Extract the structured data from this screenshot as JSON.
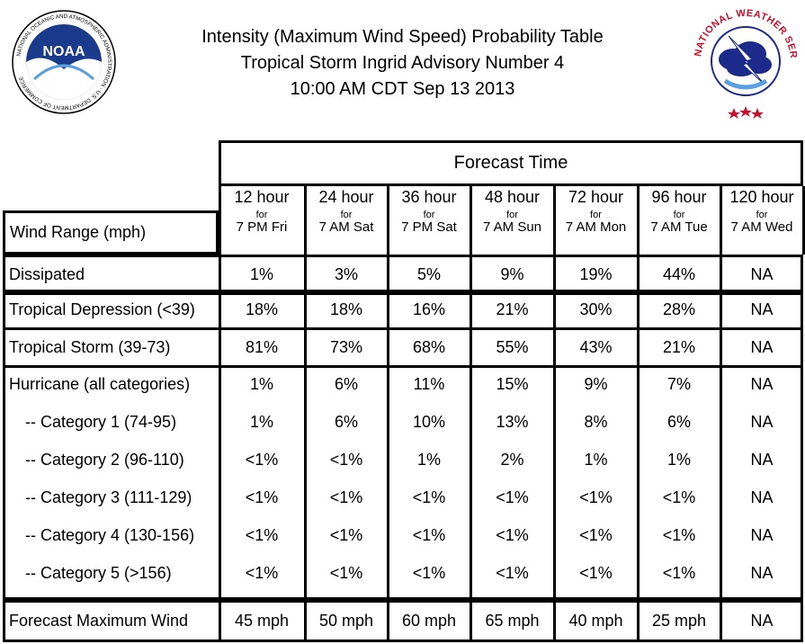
{
  "header": {
    "title_line1": "Intensity (Maximum Wind Speed) Probability Table",
    "title_line2": "Tropical Storm Ingrid Advisory Number 4",
    "title_line3": "10:00 AM CDT Sep 13 2013"
  },
  "logos": {
    "noaa_text": "NOAA",
    "noaa_ring_text": "NATIONAL OCEANIC AND ATMOSPHERIC ADMINISTRATION · U.S. DEPARTMENT OF COMMERCE",
    "nws_ring_text": "NATIONAL WEATHER SERVICE"
  },
  "table": {
    "forecast_time_label": "Forecast Time",
    "wind_range_label": "Wind Range (mph)",
    "columns": [
      {
        "hours": "12 hour",
        "for": "for",
        "time": "7 PM Fri"
      },
      {
        "hours": "24 hour",
        "for": "for",
        "time": "7 AM Sat"
      },
      {
        "hours": "36 hour",
        "for": "for",
        "time": "7 PM Sat"
      },
      {
        "hours": "48 hour",
        "for": "for",
        "time": "7 AM Sun"
      },
      {
        "hours": "72 hour",
        "for": "for",
        "time": "7 AM Mon"
      },
      {
        "hours": "96 hour",
        "for": "for",
        "time": "7 AM Tue"
      },
      {
        "hours": "120 hour",
        "for": "for",
        "time": "7 AM Wed"
      }
    ],
    "rows": [
      {
        "label": "Dissipated",
        "values": [
          "1%",
          "3%",
          "5%",
          "9%",
          "19%",
          "44%",
          "NA"
        ]
      },
      {
        "label": "Tropical Depression (<39)",
        "values": [
          "18%",
          "18%",
          "16%",
          "21%",
          "30%",
          "28%",
          "NA"
        ]
      },
      {
        "label": "Tropical Storm (39-73)",
        "values": [
          "81%",
          "73%",
          "68%",
          "55%",
          "43%",
          "21%",
          "NA"
        ]
      }
    ],
    "hurricane_rows": [
      {
        "label": "Hurricane (all categories)",
        "values": [
          "1%",
          "6%",
          "11%",
          "15%",
          "9%",
          "7%",
          "NA"
        ]
      },
      {
        "label": "-- Category 1 (74-95)",
        "values": [
          "1%",
          "6%",
          "10%",
          "13%",
          "8%",
          "6%",
          "NA"
        ]
      },
      {
        "label": "-- Category 2 (96-110)",
        "values": [
          "<1%",
          "<1%",
          "1%",
          "2%",
          "1%",
          "1%",
          "NA"
        ]
      },
      {
        "label": "-- Category 3 (111-129)",
        "values": [
          "<1%",
          "<1%",
          "<1%",
          "<1%",
          "<1%",
          "<1%",
          "NA"
        ]
      },
      {
        "label": "-- Category 4 (130-156)",
        "values": [
          "<1%",
          "<1%",
          "<1%",
          "<1%",
          "<1%",
          "<1%",
          "NA"
        ]
      },
      {
        "label": "-- Category 5 (>156)",
        "values": [
          "<1%",
          "<1%",
          "<1%",
          "<1%",
          "<1%",
          "<1%",
          "NA"
        ]
      }
    ],
    "max_wind_row": {
      "label": "Forecast Maximum Wind",
      "values": [
        "45 mph",
        "50 mph",
        "60 mph",
        "65 mph",
        "40 mph",
        "25 mph",
        "NA"
      ]
    }
  },
  "colors": {
    "noaa_blue": "#1a3b8c",
    "nws_red": "#c8102e",
    "nws_blue": "#1c2a8a"
  }
}
